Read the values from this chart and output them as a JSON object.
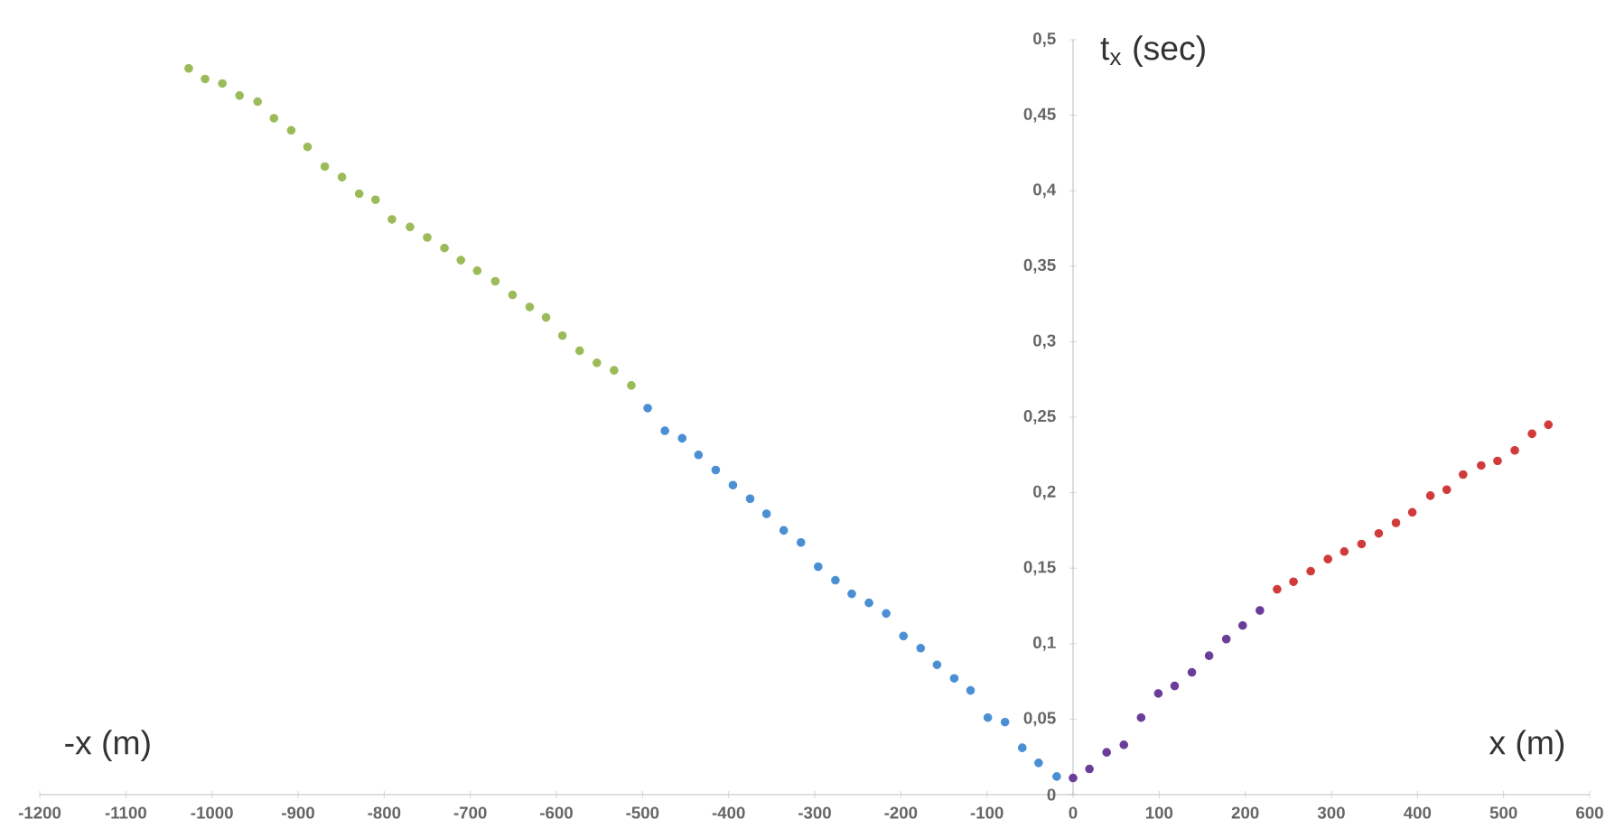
{
  "chart_data": {
    "type": "scatter",
    "ylabel": "t$_{x}$ (sec)",
    "xlabel": "x (m)",
    "annotations": [
      "-x (m)"
    ],
    "marker": "circle",
    "grid": false,
    "xlim": [
      -1200,
      600
    ],
    "ylim": [
      0,
      0.5
    ],
    "xticks": [
      -1200,
      -1100,
      -1000,
      -900,
      -800,
      -700,
      -600,
      -500,
      -400,
      -300,
      -200,
      -100,
      0,
      100,
      200,
      300,
      400,
      500,
      600
    ],
    "yticks": [
      0,
      {
        "value": 0.05,
        "label": "0,05"
      },
      {
        "value": 0.1,
        "label": "0,1"
      },
      {
        "value": 0.15,
        "label": "0,15"
      },
      {
        "value": 0.2,
        "label": "0,2"
      },
      {
        "value": 0.25,
        "label": "0,25"
      },
      {
        "value": 0.3,
        "label": "0,3"
      },
      {
        "value": 0.35,
        "label": "0,35"
      },
      {
        "value": 0.4,
        "label": "0,4"
      },
      {
        "value": 0.45,
        "label": "0,45"
      },
      {
        "value": 0.5,
        "label": "0,5"
      }
    ],
    "series": [
      {
        "color": "#9bbb59",
        "x": [
          -1027,
          -1008,
          -988,
          -968,
          -947,
          -928,
          -908,
          -889,
          -869,
          -849,
          -829,
          -810,
          -791,
          -770,
          -750,
          -730,
          -711,
          -692,
          -671,
          -651,
          -631,
          -612,
          -593,
          -573,
          -553,
          -533,
          -513
        ],
        "values": [
          0.481,
          0.474,
          0.471,
          0.463,
          0.459,
          0.448,
          0.44,
          0.429,
          0.416,
          0.409,
          0.398,
          0.394,
          0.381,
          0.376,
          0.369,
          0.362,
          0.354,
          0.347,
          0.34,
          0.331,
          0.323,
          0.316,
          0.304,
          0.294,
          0.286,
          0.281,
          0.271
        ]
      },
      {
        "color": "#4a8fd4",
        "x": [
          -494,
          -474,
          -454,
          -435,
          -415,
          -395,
          -375,
          -356,
          -336,
          -316,
          -296,
          -276,
          -257,
          -237,
          -217,
          -197,
          -177,
          -158,
          -138,
          -119,
          -99,
          -79,
          -59,
          -40,
          -19
        ],
        "values": [
          0.256,
          0.241,
          0.236,
          0.225,
          0.215,
          0.205,
          0.196,
          0.186,
          0.175,
          0.167,
          0.151,
          0.142,
          0.133,
          0.127,
          0.12,
          0.105,
          0.097,
          0.086,
          0.077,
          0.069,
          0.051,
          0.048,
          0.031,
          0.021,
          0.012
        ]
      },
      {
        "color": "#6a3d9a",
        "x": [
          0,
          19,
          39,
          59,
          79,
          99,
          118,
          138,
          158,
          178,
          197,
          217
        ],
        "values": [
          0.011,
          0.017,
          0.028,
          0.033,
          0.051,
          0.067,
          0.072,
          0.081,
          0.092,
          0.103,
          0.112,
          0.122
        ]
      },
      {
        "color": "#d03a3a",
        "x": [
          237,
          256,
          276,
          296,
          315,
          335,
          355,
          375,
          394,
          415,
          434,
          453,
          474,
          493,
          513,
          533,
          552
        ],
        "values": [
          0.136,
          0.141,
          0.148,
          0.156,
          0.161,
          0.166,
          0.173,
          0.18,
          0.187,
          0.198,
          0.202,
          0.212,
          0.218,
          0.221,
          0.228,
          0.239,
          0.245
        ]
      }
    ]
  }
}
